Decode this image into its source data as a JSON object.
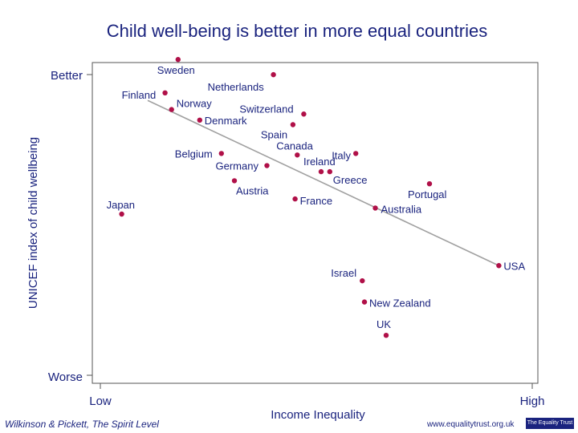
{
  "chart_data": {
    "type": "scatter",
    "title": "Child well-being is better in more equal countries",
    "xlabel": "Income Inequality",
    "ylabel": "UNICEF index of child wellbeing",
    "x_tick_labels": [
      "Low",
      "High"
    ],
    "y_tick_labels": [
      "Better",
      "Worse"
    ],
    "xlim": [
      0,
      100
    ],
    "ylim": [
      0,
      100
    ],
    "grid": false,
    "trend_line": {
      "x": [
        10,
        91
      ],
      "y": [
        87.5,
        33
      ]
    },
    "points": [
      {
        "label": "Sweden",
        "x": 17,
        "y": 101
      },
      {
        "label": "Netherlands",
        "x": 39,
        "y": 96
      },
      {
        "label": "Finland",
        "x": 14,
        "y": 90
      },
      {
        "label": "Norway",
        "x": 15.5,
        "y": 84.5
      },
      {
        "label": "Switzerland",
        "x": 46,
        "y": 83
      },
      {
        "label": "Denmark",
        "x": 22,
        "y": 81
      },
      {
        "label": "Spain",
        "x": 43.5,
        "y": 79.5
      },
      {
        "label": "Canada",
        "x": 44.5,
        "y": 69.5
      },
      {
        "label": "Belgium",
        "x": 27,
        "y": 70
      },
      {
        "label": "Italy",
        "x": 58,
        "y": 70
      },
      {
        "label": "Germany",
        "x": 37.5,
        "y": 66
      },
      {
        "label": "Ireland",
        "x": 50,
        "y": 64
      },
      {
        "label": "Greece",
        "x": 52,
        "y": 64
      },
      {
        "label": "Austria",
        "x": 30,
        "y": 61
      },
      {
        "label": "Portugal",
        "x": 75,
        "y": 60
      },
      {
        "label": "France",
        "x": 44,
        "y": 55
      },
      {
        "label": "Australia",
        "x": 62.5,
        "y": 52
      },
      {
        "label": "Japan",
        "x": 4,
        "y": 50
      },
      {
        "label": "USA",
        "x": 91,
        "y": 33
      },
      {
        "label": "Israel",
        "x": 59.5,
        "y": 28
      },
      {
        "label": "New Zealand",
        "x": 60,
        "y": 21
      },
      {
        "label": "UK",
        "x": 65,
        "y": 10
      }
    ]
  },
  "colors": {
    "title": "#1a237e",
    "text": "#1a237e",
    "point": "#b01048",
    "trend": "#a0a0a0",
    "axis": "#555555"
  },
  "footer": {
    "source": "Wilkinson & Pickett, The Spirit Level",
    "url": "www.equalitytrust.org.uk",
    "logo_text": "The Equality Trust"
  }
}
